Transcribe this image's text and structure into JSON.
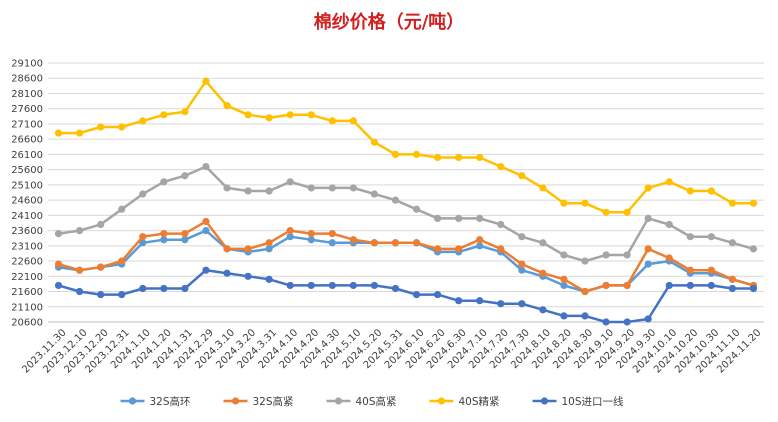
{
  "chart_data": {
    "type": "line",
    "title": "棉纱价格（元/吨）",
    "xlabel": "",
    "ylabel": "",
    "ylim": [
      20600,
      29100
    ],
    "yticks": [
      20600,
      21100,
      21600,
      22100,
      22600,
      23100,
      23600,
      24100,
      24600,
      25100,
      25600,
      26100,
      26600,
      27100,
      27600,
      28100,
      28600,
      29100
    ],
    "grid": true,
    "legend_position": "bottom",
    "categories": [
      "2023.11.30",
      "2023.12.10",
      "2023.12.20",
      "2023.12.31",
      "2024.1.10",
      "2024.1.20",
      "2024.1.31",
      "2024.2.29",
      "2024.3.10",
      "2024.3.20",
      "2024.3.31",
      "2024.4.10",
      "2024.4.20",
      "2024.4.30",
      "2024.5.10",
      "2024.5.20",
      "2024.5.31",
      "2024.6.10",
      "2024.6.20",
      "2024.6.30",
      "2024.7.10",
      "2024.7.20",
      "2024.7.30",
      "2024.8.10",
      "2024.8.20",
      "2024.8.30",
      "2024.9.10",
      "2024.9.20",
      "2024.9.30",
      "2024.10.10",
      "2024.10.20",
      "2024.10.30",
      "2024.11.10",
      "2024.11.20"
    ],
    "x_tick_labels": [
      "2023.11.30",
      "2023.12.10",
      "2023.12.20",
      "2023.12.31",
      "2024.1.10",
      "2024.1.20",
      "2024.1.31",
      "2024.2.29",
      "2024.3.10",
      "2024.3.20",
      "2024.3.31",
      "2024.4.10",
      "2024.4.20",
      "2024.4.30",
      "2024.5.10",
      "2024.5.20",
      "2024.5.31",
      "2024.6.10",
      "2024.6.20",
      "2024.6.30",
      "2024.7.10",
      "2024.7.20",
      "2024.7.30",
      "2024.8.10",
      "2024.8.20",
      "2024.8.30",
      "2024.9.10",
      "2024.9.20",
      "2024.9.30",
      "2024.10.10",
      "2024.10.20",
      "2024.10.30",
      "2024.11.10",
      "2024.11.20"
    ],
    "series": [
      {
        "name": "32S高环",
        "color": "#5b9bd5",
        "values": [
          22400,
          22300,
          22400,
          22500,
          23200,
          23300,
          23300,
          23600,
          23000,
          22900,
          23000,
          23400,
          23300,
          23200,
          23200,
          23200,
          23200,
          23200,
          22900,
          22900,
          23100,
          22900,
          22300,
          22100,
          21800,
          21600,
          21800,
          21800,
          22500,
          22600,
          22200,
          22200,
          22000,
          21800
        ]
      },
      {
        "name": "32S高紧",
        "color": "#ed7d31",
        "values": [
          22500,
          22300,
          22400,
          22600,
          23400,
          23500,
          23500,
          23900,
          23000,
          23000,
          23200,
          23600,
          23500,
          23500,
          23300,
          23200,
          23200,
          23200,
          23000,
          23000,
          23300,
          23000,
          22500,
          22200,
          22000,
          21600,
          21800,
          21800,
          23000,
          22700,
          22300,
          22300,
          22000,
          21800
        ]
      },
      {
        "name": "40S高紧",
        "color": "#a5a5a5",
        "values": [
          23500,
          23600,
          23800,
          24300,
          24800,
          25200,
          25400,
          25700,
          25000,
          24900,
          24900,
          25200,
          25000,
          25000,
          25000,
          24800,
          24600,
          24300,
          24000,
          24000,
          24000,
          23800,
          23400,
          23200,
          22800,
          22600,
          22800,
          22800,
          24000,
          23800,
          23400,
          23400,
          23200,
          23000
        ]
      },
      {
        "name": "40S精紧",
        "color": "#ffc000",
        "values": [
          26800,
          26800,
          27000,
          27000,
          27200,
          27400,
          27500,
          28500,
          27700,
          27400,
          27300,
          27400,
          27400,
          27200,
          27200,
          26500,
          26100,
          26100,
          26000,
          26000,
          26000,
          25700,
          25400,
          25000,
          24500,
          24500,
          24200,
          24200,
          25000,
          25200,
          24900,
          24900,
          24500,
          24500
        ]
      },
      {
        "name": "10S进口一线",
        "color": "#4472c4",
        "values": [
          21800,
          21600,
          21500,
          21500,
          21700,
          21700,
          21700,
          22300,
          22200,
          22100,
          22000,
          21800,
          21800,
          21800,
          21800,
          21800,
          21700,
          21500,
          21500,
          21300,
          21300,
          21200,
          21200,
          21000,
          20800,
          20800,
          20600,
          20600,
          20700,
          21800,
          21800,
          21800,
          21700,
          21700
        ]
      }
    ]
  }
}
